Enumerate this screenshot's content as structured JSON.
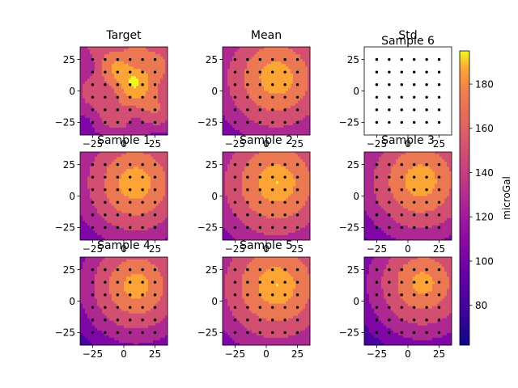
{
  "figure": {
    "colormap": "plasma",
    "colorbar": {
      "label": "microGal",
      "vmin": 62,
      "vmax": 195,
      "ticks": [
        80,
        100,
        120,
        140,
        160,
        180
      ]
    }
  },
  "chart_data": [
    {
      "type": "heatmap",
      "title": "Target",
      "xlim": [
        -35,
        35
      ],
      "ylim": [
        -35,
        35
      ],
      "xticks": [
        -25,
        0,
        25
      ],
      "yticks": [
        -25,
        0,
        25
      ],
      "field": "target",
      "center": [
        8,
        10
      ],
      "peak": 190,
      "decay": 1.55,
      "station_grid": {
        "x": [
          -25,
          -15,
          -5,
          5,
          15,
          25
        ],
        "y": [
          -25,
          -15,
          -5,
          5,
          15,
          25
        ]
      }
    },
    {
      "type": "heatmap",
      "title": "Mean",
      "xlim": [
        -35,
        35
      ],
      "ylim": [
        -35,
        35
      ],
      "xticks": [
        -25,
        0,
        25
      ],
      "yticks": [
        -25,
        0,
        25
      ],
      "field": "smooth",
      "center": [
        8,
        10
      ],
      "peak": 190,
      "decay": 1.55,
      "station_grid": {
        "x": [
          -25,
          -15,
          -5,
          5,
          15,
          25
        ],
        "y": [
          -25,
          -15,
          -5,
          5,
          15,
          25
        ]
      }
    },
    {
      "type": "heatmap",
      "title": "Std",
      "overlay_title": "Sample 6",
      "xlim": [
        -35,
        35
      ],
      "ylim": [
        -35,
        35
      ],
      "xticks": [
        -25,
        0,
        25
      ],
      "yticks": [
        -25,
        0,
        25
      ],
      "field": "blank",
      "station_grid": {
        "x": [
          -25,
          -15,
          -5,
          5,
          15,
          25
        ],
        "y": [
          -25,
          -15,
          -5,
          5,
          15,
          25
        ]
      }
    },
    {
      "type": "heatmap",
      "title": "Sample 1",
      "xlim": [
        -35,
        35
      ],
      "ylim": [
        -35,
        35
      ],
      "xticks": [
        -25,
        0,
        25
      ],
      "yticks": [
        -25,
        0,
        25
      ],
      "field": "smooth",
      "center": [
        9,
        10
      ],
      "peak": 190,
      "decay": 1.6,
      "station_grid": {
        "x": [
          -25,
          -15,
          -5,
          5,
          15,
          25
        ],
        "y": [
          -25,
          -15,
          -5,
          5,
          15,
          25
        ]
      }
    },
    {
      "type": "heatmap",
      "title": "Sample 2",
      "xlim": [
        -35,
        35
      ],
      "ylim": [
        -35,
        35
      ],
      "xticks": [
        -25,
        0,
        25
      ],
      "yticks": [
        -25,
        0,
        25
      ],
      "field": "smooth",
      "center": [
        8,
        10
      ],
      "peak": 192,
      "decay": 1.5,
      "station_grid": {
        "x": [
          -25,
          -15,
          -5,
          5,
          15,
          25
        ],
        "y": [
          -25,
          -15,
          -5,
          5,
          15,
          25
        ]
      }
    },
    {
      "type": "heatmap",
      "title": "Sample 3",
      "xlim": [
        -35,
        35
      ],
      "ylim": [
        -35,
        35
      ],
      "xticks": [
        -25,
        0,
        25
      ],
      "yticks": [
        -25,
        0,
        25
      ],
      "field": "smooth",
      "center": [
        10,
        12
      ],
      "peak": 190,
      "decay": 1.6,
      "station_grid": {
        "x": [
          -25,
          -15,
          -5,
          5,
          15,
          25
        ],
        "y": [
          -25,
          -15,
          -5,
          5,
          15,
          25
        ]
      }
    },
    {
      "type": "heatmap",
      "title": "Sample 4",
      "xlim": [
        -35,
        35
      ],
      "ylim": [
        -35,
        35
      ],
      "xticks": [
        -25,
        0,
        25
      ],
      "yticks": [
        -25,
        0,
        25
      ],
      "field": "smooth",
      "center": [
        10,
        12
      ],
      "peak": 186,
      "decay": 1.65,
      "station_grid": {
        "x": [
          -25,
          -15,
          -5,
          5,
          15,
          25
        ],
        "y": [
          -25,
          -15,
          -5,
          5,
          15,
          25
        ]
      }
    },
    {
      "type": "heatmap",
      "title": "Sample 5",
      "xlim": [
        -35,
        35
      ],
      "ylim": [
        -35,
        35
      ],
      "xticks": [
        -25,
        0,
        25
      ],
      "yticks": [
        -25,
        0,
        25
      ],
      "field": "smooth",
      "center": [
        8,
        12
      ],
      "peak": 192,
      "decay": 1.5,
      "station_grid": {
        "x": [
          -25,
          -15,
          -5,
          5,
          15,
          25
        ],
        "y": [
          -25,
          -15,
          -5,
          5,
          15,
          25
        ]
      }
    },
    {
      "type": "heatmap",
      "title": "",
      "xlim": [
        -35,
        35
      ],
      "ylim": [
        -35,
        35
      ],
      "xticks": [
        -25,
        0,
        25
      ],
      "yticks": [
        -25,
        0,
        25
      ],
      "field": "smooth",
      "center": [
        12,
        14
      ],
      "peak": 184,
      "decay": 1.65,
      "station_grid": {
        "x": [
          -25,
          -15,
          -5,
          5,
          15,
          25
        ],
        "y": [
          -25,
          -15,
          -5,
          5,
          15,
          25
        ]
      }
    }
  ]
}
